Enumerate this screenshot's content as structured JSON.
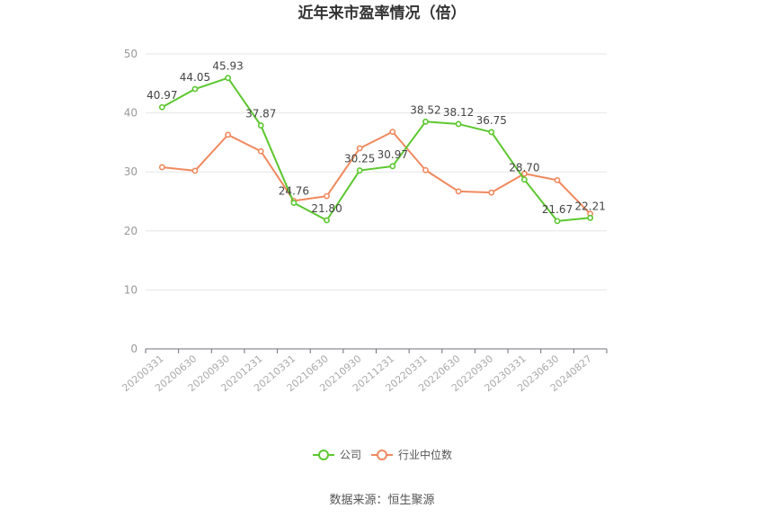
{
  "chart_data": {
    "type": "line",
    "title": "近年来市盈率情况（倍）",
    "x": [
      "20200331",
      "20200630",
      "20200930",
      "20201231",
      "20210331",
      "20210630",
      "20210930",
      "20211231",
      "20220331",
      "20220630",
      "20220930",
      "20230331",
      "20230630",
      "20240827"
    ],
    "ylim": [
      0,
      50
    ],
    "yticks": [
      0,
      10,
      20,
      30,
      40,
      50
    ],
    "grid": true,
    "legend_position": "bottom-center",
    "series": [
      {
        "name": "公司",
        "color": "#5cc72f",
        "values": [
          40.97,
          44.05,
          45.93,
          37.87,
          24.76,
          21.8,
          30.25,
          30.97,
          38.52,
          38.12,
          36.75,
          28.7,
          21.67,
          22.21
        ],
        "labels": [
          "40.97",
          "44.05",
          "45.93",
          "37.87",
          "24.76",
          "21.80",
          "30.25",
          "30.97",
          "38.52",
          "38.12",
          "36.75",
          "28.70",
          "21.67",
          "22.21"
        ]
      },
      {
        "name": "行业中位数",
        "color": "#f0895e",
        "values": [
          30.8,
          30.2,
          36.3,
          33.5,
          25.1,
          25.9,
          34.0,
          36.8,
          30.3,
          26.7,
          26.5,
          29.7,
          28.6,
          22.9
        ]
      }
    ]
  },
  "source": "数据来源：恒生聚源"
}
